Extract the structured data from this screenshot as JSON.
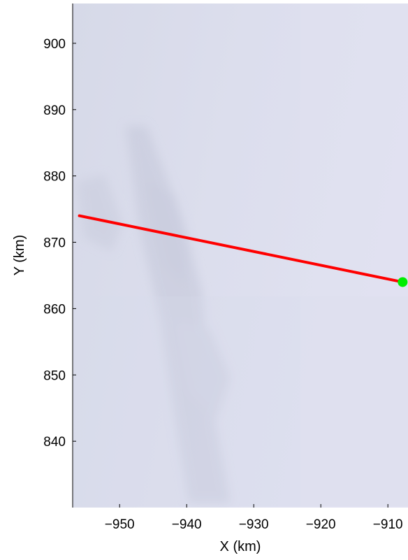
{
  "chart_data": {
    "type": "line",
    "title": "",
    "xlabel": "X (km)",
    "ylabel": "Y (km)",
    "xlim": [
      -957,
      -907
    ],
    "ylim": [
      830,
      906
    ],
    "xticks": [
      -950,
      -940,
      -930,
      -920,
      -910
    ],
    "yticks": [
      840,
      850,
      860,
      870,
      880,
      890,
      900
    ],
    "xtick_labels": [
      "−950",
      "−940",
      "−930",
      "−920",
      "−910"
    ],
    "ytick_labels": [
      "840",
      "850",
      "860",
      "870",
      "880",
      "890",
      "900"
    ],
    "background": "satellite image (snow/ice surface)",
    "grid": false,
    "series": [
      {
        "color": "#ff0000",
        "x": [
          -956,
          -907.8
        ],
        "y": [
          874,
          864
        ]
      }
    ],
    "markers": [
      {
        "x": -907.8,
        "y": 864,
        "color": "#00ee00",
        "shape": "circle"
      }
    ]
  }
}
